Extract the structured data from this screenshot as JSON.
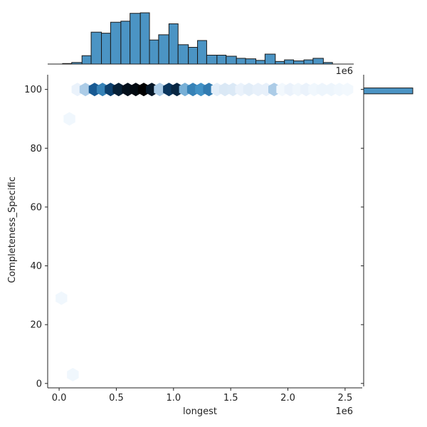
{
  "chart_data": {
    "type": "hexbin-joint",
    "xlabel": "longest",
    "ylabel": "Completeness_Specific",
    "x_offset_label": "1e6",
    "marginal_offset_label": "1e6",
    "xlim": [
      -0.1,
      2.65
    ],
    "ylim": [
      -1.5,
      105
    ],
    "x_ticks": [
      0.0,
      0.5,
      1.0,
      1.5,
      2.0,
      2.5
    ],
    "x_tick_labels": [
      "0.0",
      "0.5",
      "1.0",
      "1.5",
      "2.0",
      "2.5"
    ],
    "y_ticks": [
      0,
      20,
      40,
      60,
      80,
      100
    ],
    "y_tick_labels": [
      "0",
      "20",
      "40",
      "60",
      "80",
      "100"
    ],
    "colormap": "Blues",
    "marginal_color": "#4b94c4",
    "hexbins": [
      {
        "x": 0.12,
        "y": 3,
        "count": 0.04
      },
      {
        "x": 0.02,
        "y": 29,
        "count": 0.04
      },
      {
        "x": 0.09,
        "y": 90,
        "count": 0.04
      },
      {
        "x": 0.16,
        "y": 100,
        "count": 0.08
      },
      {
        "x": 0.23,
        "y": 100,
        "count": 0.35
      },
      {
        "x": 0.31,
        "y": 100,
        "count": 0.72
      },
      {
        "x": 0.38,
        "y": 100,
        "count": 0.6
      },
      {
        "x": 0.45,
        "y": 100,
        "count": 0.8
      },
      {
        "x": 0.52,
        "y": 100,
        "count": 0.9
      },
      {
        "x": 0.6,
        "y": 100,
        "count": 0.95
      },
      {
        "x": 0.67,
        "y": 100,
        "count": 0.97
      },
      {
        "x": 0.74,
        "y": 100,
        "count": 1.0
      },
      {
        "x": 0.81,
        "y": 100,
        "count": 0.93
      },
      {
        "x": 0.88,
        "y": 100,
        "count": 0.35
      },
      {
        "x": 0.96,
        "y": 100,
        "count": 0.83
      },
      {
        "x": 1.03,
        "y": 100,
        "count": 0.88
      },
      {
        "x": 1.1,
        "y": 100,
        "count": 0.45
      },
      {
        "x": 1.17,
        "y": 100,
        "count": 0.6
      },
      {
        "x": 1.24,
        "y": 100,
        "count": 0.55
      },
      {
        "x": 1.31,
        "y": 100,
        "count": 0.62
      },
      {
        "x": 1.38,
        "y": 100,
        "count": 0.12
      },
      {
        "x": 1.45,
        "y": 100,
        "count": 0.18
      },
      {
        "x": 1.52,
        "y": 100,
        "count": 0.17
      },
      {
        "x": 1.59,
        "y": 100,
        "count": 0.08
      },
      {
        "x": 1.66,
        "y": 100,
        "count": 0.13
      },
      {
        "x": 1.74,
        "y": 100,
        "count": 0.1
      },
      {
        "x": 1.81,
        "y": 100,
        "count": 0.1
      },
      {
        "x": 1.88,
        "y": 100,
        "count": 0.35
      },
      {
        "x": 1.95,
        "y": 100,
        "count": 0.03
      },
      {
        "x": 2.02,
        "y": 100,
        "count": 0.08
      },
      {
        "x": 2.09,
        "y": 100,
        "count": 0.05
      },
      {
        "x": 2.16,
        "y": 100,
        "count": 0.08
      },
      {
        "x": 2.23,
        "y": 100,
        "count": 0.04
      },
      {
        "x": 2.3,
        "y": 100,
        "count": 0.06
      },
      {
        "x": 2.38,
        "y": 100,
        "count": 0.06
      },
      {
        "x": 2.45,
        "y": 100,
        "count": 0.04
      },
      {
        "x": 2.52,
        "y": 100,
        "count": 0.03
      }
    ],
    "marginal_x": {
      "bin_edges": [
        0.03,
        0.11,
        0.2,
        0.28,
        0.37,
        0.45,
        0.54,
        0.62,
        0.71,
        0.79,
        0.87,
        0.96,
        1.04,
        1.13,
        1.21,
        1.29,
        1.38,
        1.46,
        1.55,
        1.63,
        1.72,
        1.8,
        1.89,
        1.97,
        2.05,
        2.14,
        2.22,
        2.31,
        2.39,
        2.48,
        2.56
      ],
      "counts": [
        1,
        3,
        16,
        61,
        59,
        80,
        82,
        97,
        98,
        46,
        56,
        77,
        37,
        32,
        45,
        17,
        17,
        15,
        11,
        10,
        7,
        19,
        5,
        8,
        6,
        8,
        11,
        3,
        0,
        0
      ]
    },
    "marginal_y": {
      "bin_edges": [
        98.5,
        100.5
      ],
      "counts": [
        1
      ]
    }
  }
}
